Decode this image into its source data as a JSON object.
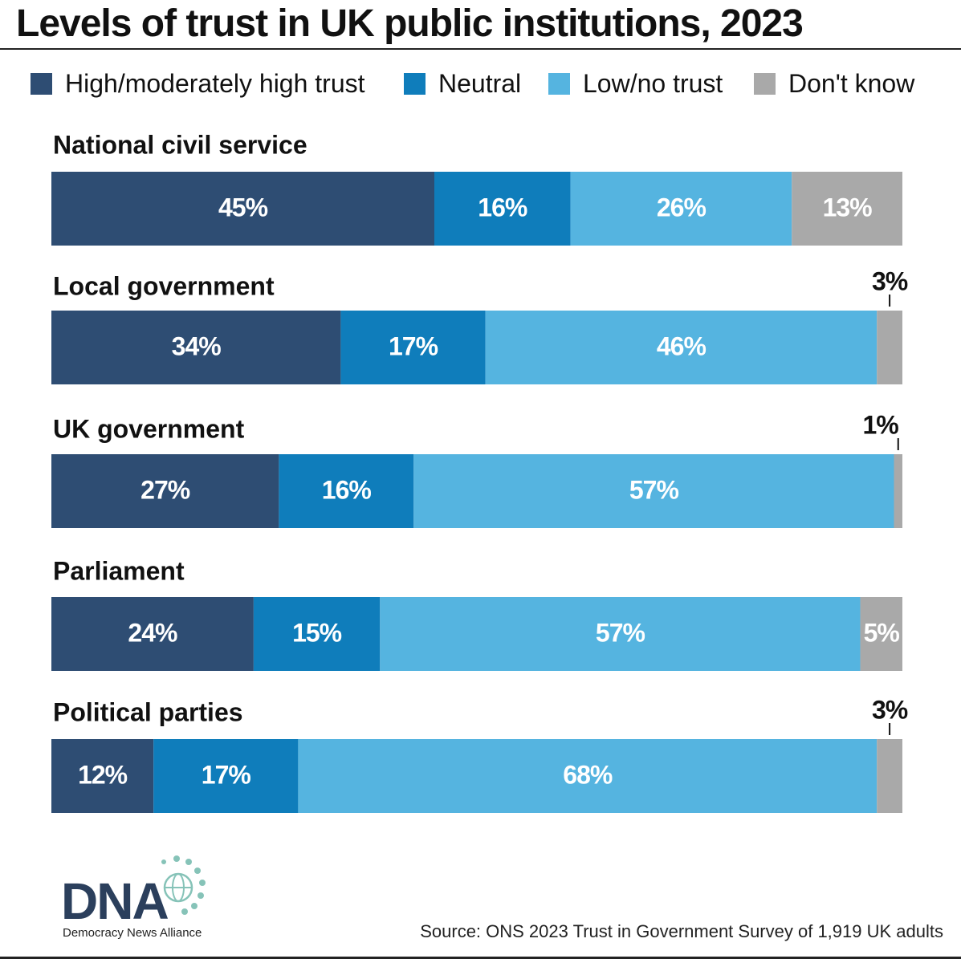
{
  "title": "Levels of trust in UK public institutions, 2023",
  "source": "Source: ONS 2023 Trust in Government Survey of 1,919 UK adults",
  "logo": {
    "mark": "DNA",
    "name": "Democracy News Alliance"
  },
  "colors": {
    "high": "#2e4d73",
    "neutral": "#0f7dbb",
    "low": "#55b4e0",
    "dont_know": "#a9a9a9",
    "text_on_bar": "#ffffff",
    "text_dark": "#111111"
  },
  "chart_data": {
    "type": "bar",
    "orientation": "horizontal",
    "stacked": true,
    "unit": "%",
    "legend_position": "top",
    "grid": false,
    "categories": [
      "National civil service",
      "Local government",
      "UK government",
      "Parliament",
      "Political parties"
    ],
    "series": [
      {
        "name": "High/moderately high trust",
        "key": "high",
        "values": [
          45,
          34,
          27,
          24,
          12
        ]
      },
      {
        "name": "Neutral",
        "key": "neutral",
        "values": [
          16,
          17,
          16,
          15,
          17
        ]
      },
      {
        "name": "Low/no trust",
        "key": "low",
        "values": [
          26,
          46,
          57,
          57,
          68
        ]
      },
      {
        "name": "Don't know",
        "key": "dont_know",
        "values": [
          13,
          3,
          1,
          5,
          3
        ]
      }
    ]
  }
}
